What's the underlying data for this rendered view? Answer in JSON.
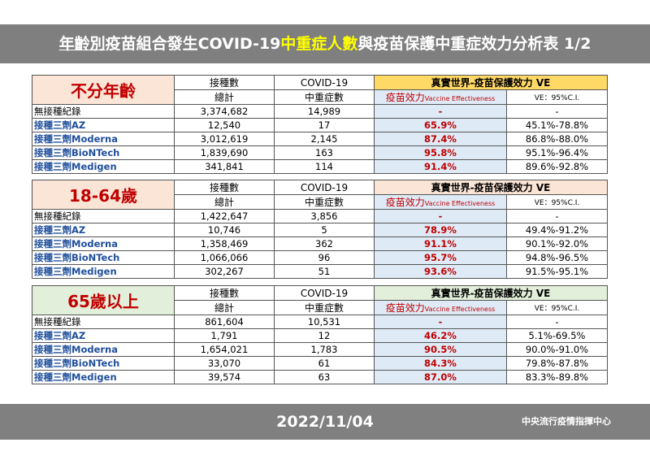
{
  "title": {
    "part1": "年齡別",
    "part2": "疫苗組合發生COVID-19",
    "part3": "中重症人數",
    "part4": "與疫苗保護中重症效力分析表 1/2"
  },
  "headers": {
    "vaccinated": "接種數",
    "total": "總計",
    "covid": "COVID-19",
    "severe": "中重症數",
    "ve_title": "真實世界-疫苗保護效力 VE",
    "eff_label": "疫苗效力",
    "eff_label_en": "Vaccine Effectiveness",
    "ci_label": "VE：95%C.I."
  },
  "groups": [
    {
      "name": "不分年齡",
      "rows": [
        {
          "label": "無接種紀錄",
          "vaccinated": "3,374,682",
          "severe": "14,989",
          "ve": "-",
          "ci": "-"
        },
        {
          "label": "接種三劑AZ",
          "vaccinated": "12,540",
          "severe": "17",
          "ve": "65.9%",
          "ci": "45.1%-78.8%"
        },
        {
          "label": "接種三劑Moderna",
          "vaccinated": "3,012,619",
          "severe": "2,145",
          "ve": "87.4%",
          "ci": "86.8%-88.0%"
        },
        {
          "label": "接種三劑BioNTech",
          "vaccinated": "1,839,690",
          "severe": "163",
          "ve": "95.8%",
          "ci": "95.1%-96.4%"
        },
        {
          "label": "接種三劑Medigen",
          "vaccinated": "341,841",
          "severe": "114",
          "ve": "91.4%",
          "ci": "89.6%-92.8%"
        }
      ]
    },
    {
      "name": "18-64歲",
      "rows": [
        {
          "label": "無接種紀錄",
          "vaccinated": "1,422,647",
          "severe": "3,856",
          "ve": "-",
          "ci": "-"
        },
        {
          "label": "接種三劑AZ",
          "vaccinated": "10,746",
          "severe": "5",
          "ve": "78.9%",
          "ci": "49.4%-91.2%"
        },
        {
          "label": "接種三劑Moderna",
          "vaccinated": "1,358,469",
          "severe": "362",
          "ve": "91.1%",
          "ci": "90.1%-92.0%"
        },
        {
          "label": "接種三劑BioNTech",
          "vaccinated": "1,066,066",
          "severe": "96",
          "ve": "95.7%",
          "ci": "94.8%-96.5%"
        },
        {
          "label": "接種三劑Medigen",
          "vaccinated": "302,267",
          "severe": "51",
          "ve": "93.6%",
          "ci": "91.5%-95.1%"
        }
      ]
    },
    {
      "name": "65歲以上",
      "rows": [
        {
          "label": "無接種紀錄",
          "vaccinated": "861,604",
          "severe": "10,531",
          "ve": "-",
          "ci": "-"
        },
        {
          "label": "接種三劑AZ",
          "vaccinated": "1,791",
          "severe": "12",
          "ve": "46.2%",
          "ci": "5.1%-69.5%"
        },
        {
          "label": "接種三劑Moderna",
          "vaccinated": "1,654,021",
          "severe": "1,783",
          "ve": "90.5%",
          "ci": "90.0%-91.0%"
        },
        {
          "label": "接種三劑BioNTech",
          "vaccinated": "33,070",
          "severe": "61",
          "ve": "84.3%",
          "ci": "79.8%-87.8%"
        },
        {
          "label": "接種三劑Medigen",
          "vaccinated": "39,574",
          "severe": "63",
          "ve": "87.0%",
          "ci": "83.3%-89.8%"
        }
      ]
    }
  ],
  "footer": {
    "date": "2022/11/04",
    "org": "中央流行疫情指揮中心"
  },
  "colors": {
    "group1_header": "#fbe5d6",
    "group1_ve": "#ffd966",
    "group2_header": "#fbe5d6",
    "group2_ve": "#fbe5d6",
    "group3_header": "#e2efda",
    "group3_ve": "#e2efda",
    "effectiveness_cell": "#deebf7",
    "emphasis_red": "#c00000",
    "label_blue": "#1f4e9c",
    "bar_gray": "#7f7f7f"
  }
}
